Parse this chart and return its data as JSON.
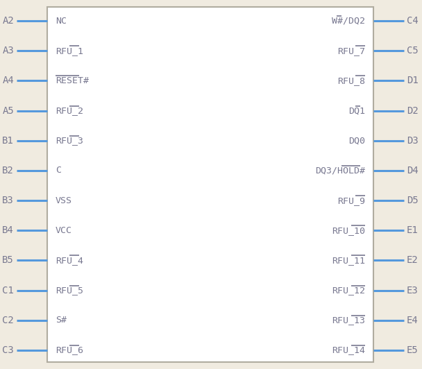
{
  "bg_color": "#f0ebe0",
  "body_color": "#b0aca0",
  "body_fill": "#ffffff",
  "pin_line_color": "#5599dd",
  "text_color": "#787890",
  "title_color": "#787890",
  "left_pins": [
    {
      "label": "A2",
      "name": "NC"
    },
    {
      "label": "A3",
      "name": "RFU_1",
      "overbar": [
        3,
        5
      ]
    },
    {
      "label": "A4",
      "name": "RESET#",
      "overbar": [
        0,
        5
      ]
    },
    {
      "label": "A5",
      "name": "RFU_2",
      "overbar": [
        3,
        5
      ]
    },
    {
      "label": "B1",
      "name": "RFU_3",
      "overbar": [
        3,
        5
      ]
    },
    {
      "label": "B2",
      "name": "C"
    },
    {
      "label": "B3",
      "name": "VSS"
    },
    {
      "label": "B4",
      "name": "VCC"
    },
    {
      "label": "B5",
      "name": "RFU_4",
      "overbar": [
        3,
        5
      ]
    },
    {
      "label": "C1",
      "name": "RFU_5",
      "overbar": [
        3,
        5
      ]
    },
    {
      "label": "C2",
      "name": "S#"
    },
    {
      "label": "C3",
      "name": "RFU_6",
      "overbar": [
        3,
        5
      ]
    }
  ],
  "right_pins": [
    {
      "label": "C4",
      "name": "W#/DQ2",
      "overbar": [
        0,
        1
      ]
    },
    {
      "label": "C5",
      "name": "RFU_7",
      "overbar": [
        3,
        5
      ]
    },
    {
      "label": "D1",
      "name": "RFU_8",
      "overbar": [
        3,
        5
      ]
    },
    {
      "label": "D2",
      "name": "DQ1",
      "overbar": [
        1,
        2
      ]
    },
    {
      "label": "D3",
      "name": "DQ0"
    },
    {
      "label": "D4",
      "name": "DQ3/HOLD#",
      "overbar": [
        4,
        8
      ]
    },
    {
      "label": "D5",
      "name": "RFU_9",
      "overbar": [
        3,
        5
      ]
    },
    {
      "label": "E1",
      "name": "RFU_10",
      "overbar": [
        3,
        6
      ]
    },
    {
      "label": "E2",
      "name": "RFU_11",
      "overbar": [
        3,
        6
      ]
    },
    {
      "label": "E3",
      "name": "RFU_12",
      "overbar": [
        3,
        6
      ]
    },
    {
      "label": "E4",
      "name": "RFU_13",
      "overbar": [
        3,
        6
      ]
    },
    {
      "label": "E5",
      "name": "RFU_14",
      "overbar": [
        3,
        6
      ]
    }
  ]
}
